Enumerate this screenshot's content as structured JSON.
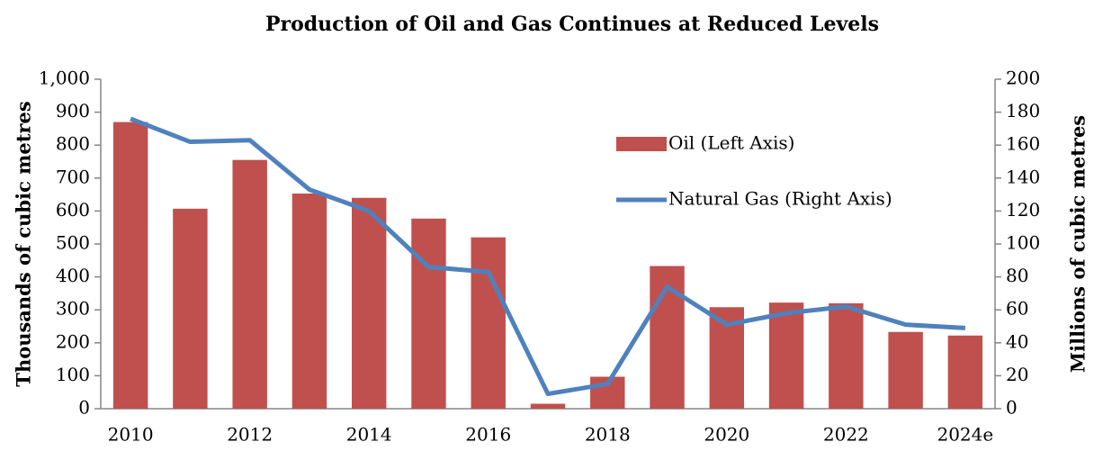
{
  "chart_data": {
    "type": "bar_line",
    "title": "Production of Oil and Gas Continues at Reduced Levels",
    "y_label": "Thousands of cubic metres",
    "y2_label": "Millions of cubic metres",
    "categories": [
      "2010",
      null,
      "2012",
      null,
      "2014",
      null,
      "2016",
      null,
      "2018",
      null,
      "2020",
      null,
      "2022",
      null,
      "2024e"
    ],
    "series": [
      {
        "name": "Oil (Left Axis)",
        "type": "bar",
        "color": "#c0504d",
        "values": [
          870,
          607,
          755,
          653,
          640,
          577,
          520,
          15,
          97,
          433,
          308,
          322,
          320,
          233,
          222
        ]
      },
      {
        "name": "Natural Gas (Right Axis)",
        "type": "line",
        "axis": "y2",
        "color": "#4f81bd",
        "values": [
          176,
          162,
          163,
          133,
          120,
          86,
          83,
          9,
          15,
          74,
          51,
          58,
          62,
          51,
          49
        ]
      }
    ],
    "ylim": [
      0,
      1000
    ],
    "yticks": [
      0,
      100,
      200,
      300,
      400,
      500,
      600,
      700,
      800,
      900,
      {
        "value": 1000,
        "label": "1,000"
      }
    ],
    "y2lim": [
      0,
      200
    ],
    "y2ticks": [
      0,
      20,
      40,
      60,
      80,
      100,
      120,
      140,
      160,
      180,
      200
    ],
    "legend": "inside",
    "grid": false
  }
}
